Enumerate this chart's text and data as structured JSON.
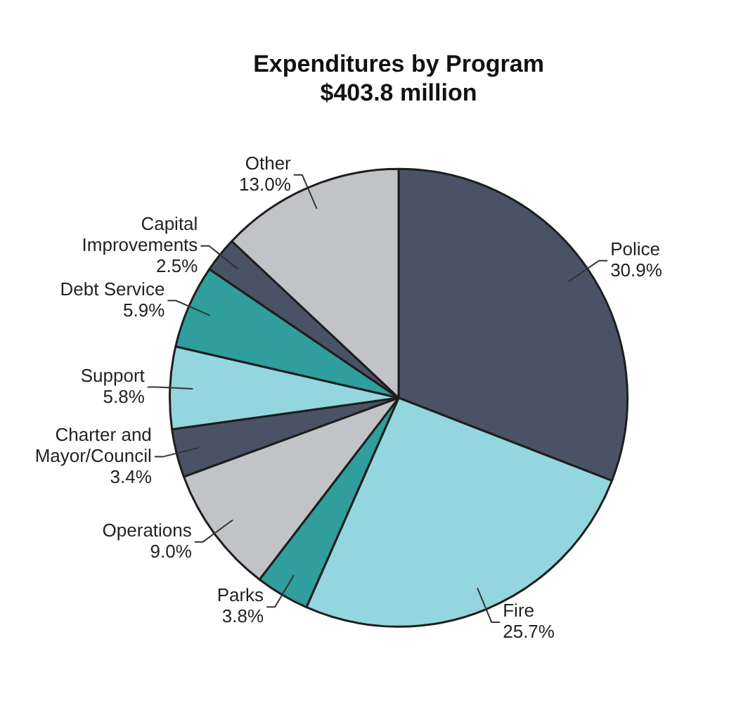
{
  "chart_data": {
    "type": "pie",
    "title": "Expenditures by Program",
    "subtitle": "$403.8 million",
    "categories": [
      "Police",
      "Fire",
      "Parks",
      "Operations",
      "Charter and Mayor/Council",
      "Support",
      "Debt Service",
      "Capital Improvements",
      "Other"
    ],
    "values": [
      30.9,
      25.7,
      3.8,
      9.0,
      3.4,
      5.8,
      5.9,
      2.5,
      13.0
    ],
    "value_labels": [
      "30.9%",
      "25.7%",
      "3.8%",
      "9.0%",
      "3.4%",
      "5.8%",
      "5.9%",
      "2.5%",
      "13.0%"
    ],
    "colors": [
      "#4a5366",
      "#93d6de",
      "#2f9e9d",
      "#c1c3c7",
      "#4a5366",
      "#93d6de",
      "#2f9e9d",
      "#4a5366",
      "#c1c3c7"
    ],
    "legend": false
  }
}
